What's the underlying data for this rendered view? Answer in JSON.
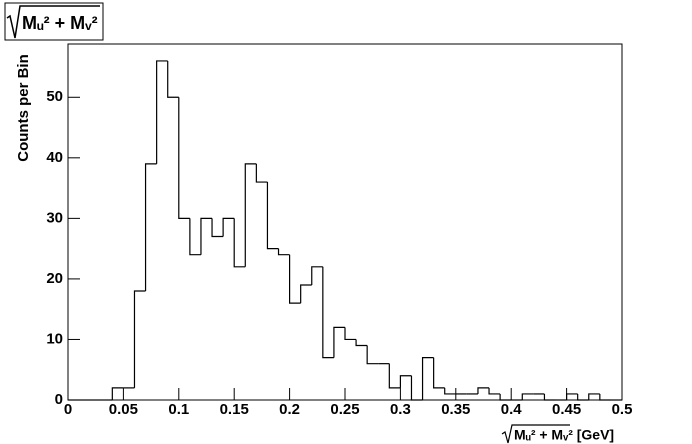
{
  "chart_data": {
    "type": "histogram",
    "title": "Mᵤ² + Mᵥ²",
    "x_label": "Mᵤ² + Mᵥ² [GeV]",
    "y_label": "Counts per Bin",
    "bins": [
      0,
      0.01,
      0.02,
      0.03,
      0.04,
      0.05,
      0.06,
      0.07,
      0.08,
      0.09,
      0.1,
      0.11,
      0.12,
      0.13,
      0.14,
      0.15,
      0.16,
      0.17,
      0.18,
      0.19,
      0.2,
      0.21,
      0.22,
      0.23,
      0.24,
      0.25,
      0.26,
      0.27,
      0.28,
      0.29,
      0.3,
      0.31,
      0.32,
      0.33,
      0.34,
      0.35,
      0.36,
      0.37,
      0.38,
      0.39,
      0.4,
      0.41,
      0.42,
      0.43,
      0.44,
      0.45,
      0.46,
      0.47,
      0.48,
      0.49,
      0.5
    ],
    "values": [
      0,
      0,
      0,
      0,
      2,
      2,
      18,
      39,
      56,
      50,
      30,
      24,
      30,
      27,
      30,
      22,
      39,
      36,
      25,
      24,
      16,
      19,
      22,
      7,
      12,
      10,
      9,
      6,
      6,
      2,
      4,
      0,
      7,
      2,
      1,
      1,
      1,
      2,
      1,
      0,
      0,
      1,
      1,
      0,
      0,
      1,
      0,
      1,
      0,
      0
    ],
    "color": "#000000",
    "xlim": [
      0,
      0.5
    ],
    "xticks": [
      0,
      0.05,
      0.1,
      0.15,
      0.2,
      0.25,
      0.3,
      0.35,
      0.4,
      0.45,
      0.5
    ],
    "ylim": [
      0,
      58.8
    ],
    "yticks": [
      0,
      10,
      20,
      30,
      40,
      50
    ]
  }
}
